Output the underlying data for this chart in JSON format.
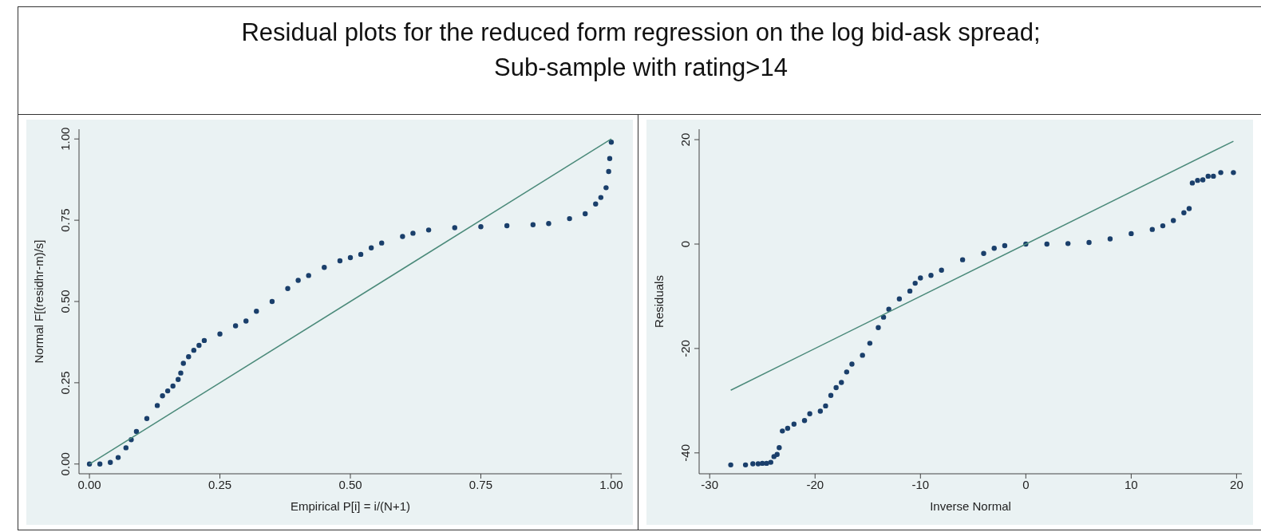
{
  "chart_data": [
    {
      "type": "scatter",
      "title": "Residual plots for the reduced form regression on the log bid-ask spread;",
      "subtitle": "Sub-sample with rating>14",
      "xlabel": "Empirical P[i] = i/(N+1)",
      "ylabel": "Normal F[(residhr-m)/s]",
      "xlim": [
        -0.02,
        1.02
      ],
      "ylim": [
        -0.03,
        1.03
      ],
      "xticks": [
        {
          "value": 0,
          "label": "0.00"
        },
        {
          "value": 0.25,
          "label": "0.25"
        },
        {
          "value": 0.5,
          "label": "0.50"
        },
        {
          "value": 0.75,
          "label": "0.75"
        },
        {
          "value": 1,
          "label": "1.00"
        }
      ],
      "yticks": [
        {
          "value": 0,
          "label": "0.00"
        },
        {
          "value": 0.25,
          "label": "0.25"
        },
        {
          "value": 0.5,
          "label": "0.50"
        },
        {
          "value": 0.75,
          "label": "0.75"
        },
        {
          "value": 1,
          "label": "1.00"
        }
      ],
      "grid": false,
      "legend": false,
      "series": [
        {
          "marker": "circle",
          "color": "#1a3f6b",
          "x": [
            0,
            0.02,
            0.04,
            0.055,
            0.07,
            0.08,
            0.09,
            0.11,
            0.13,
            0.14,
            0.15,
            0.16,
            0.17,
            0.175,
            0.18,
            0.19,
            0.2,
            0.21,
            0.22,
            0.25,
            0.28,
            0.3,
            0.32,
            0.35,
            0.38,
            0.4,
            0.42,
            0.45,
            0.48,
            0.5,
            0.52,
            0.54,
            0.56,
            0.6,
            0.62,
            0.65,
            0.7,
            0.75,
            0.8,
            0.85,
            0.88,
            0.92,
            0.95,
            0.97,
            0.98,
            0.99,
            0.995,
            0.997,
            1.0
          ],
          "values": [
            0,
            0,
            0.005,
            0.02,
            0.05,
            0.075,
            0.1,
            0.14,
            0.18,
            0.21,
            0.225,
            0.24,
            0.26,
            0.28,
            0.31,
            0.33,
            0.35,
            0.365,
            0.38,
            0.4,
            0.425,
            0.44,
            0.47,
            0.5,
            0.54,
            0.565,
            0.58,
            0.605,
            0.625,
            0.635,
            0.645,
            0.665,
            0.68,
            0.7,
            0.71,
            0.72,
            0.727,
            0.73,
            0.733,
            0.736,
            0.74,
            0.755,
            0.77,
            0.8,
            0.82,
            0.85,
            0.9,
            0.94,
            0.99
          ]
        },
        {
          "type": "line",
          "marker": "none",
          "color": "#4b8a7a",
          "x": [
            0,
            1
          ],
          "values": [
            0,
            1
          ]
        }
      ]
    },
    {
      "type": "scatter",
      "xlabel": "Inverse Normal",
      "ylabel": "Residuals",
      "xlim": [
        -31,
        20.5
      ],
      "ylim": [
        -44,
        22
      ],
      "xticks": [
        -30,
        -20,
        -10,
        0,
        10,
        20
      ],
      "yticks": [
        -40,
        -20,
        0,
        20
      ],
      "grid": false,
      "legend": false,
      "series": [
        {
          "marker": "circle",
          "color": "#1a3f6b",
          "x": [
            -28,
            -26.6,
            -25.9,
            -25.4,
            -25,
            -24.6,
            -24.2,
            -23.9,
            -23.6,
            -23.4,
            -23.1,
            -22.6,
            -22,
            -21,
            -20.5,
            -19.5,
            -19,
            -18.5,
            -18,
            -17.5,
            -17,
            -16.5,
            -15.5,
            -14.8,
            -14,
            -13.5,
            -13,
            -12,
            -11,
            -10.5,
            -10,
            -9,
            -8,
            -6,
            -4,
            -3,
            -2,
            0,
            2,
            4,
            6,
            8,
            10,
            12,
            13,
            14,
            15,
            15.5,
            15.8,
            16.3,
            16.8,
            17.3,
            17.8,
            18.5,
            19.7
          ],
          "values": [
            -42.3,
            -42.3,
            -42.1,
            -42.1,
            -42,
            -42,
            -41.8,
            -40.7,
            -40.3,
            -39,
            -35.8,
            -35.3,
            -34.5,
            -33.8,
            -32.5,
            -32,
            -31,
            -29,
            -27.5,
            -26.5,
            -24.5,
            -23,
            -21.3,
            -19,
            -16,
            -14,
            -12.5,
            -10.5,
            -9,
            -7.5,
            -6.5,
            -6,
            -5,
            -3,
            -1.8,
            -0.8,
            -0.3,
            0,
            0,
            0.1,
            0.3,
            1,
            2,
            2.8,
            3.5,
            4.5,
            6,
            6.8,
            11.7,
            12.2,
            12.3,
            13,
            13,
            13.7,
            13.7
          ]
        },
        {
          "type": "line",
          "marker": "none",
          "color": "#4b8a7a",
          "x": [
            -28,
            19.7
          ],
          "values": [
            -28,
            19.7
          ]
        }
      ]
    }
  ]
}
